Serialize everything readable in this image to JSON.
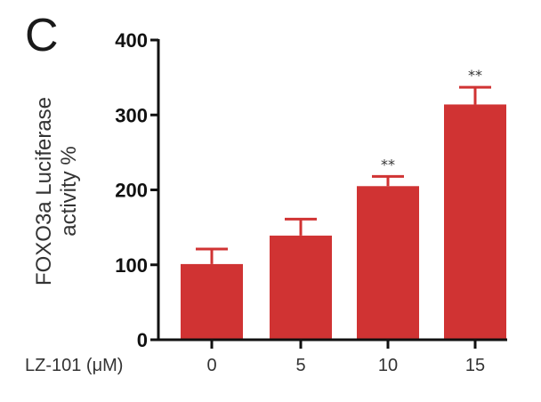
{
  "panel_label": "C",
  "chart_data": {
    "type": "bar",
    "title": "",
    "xlabel": "LZ-101 (μM)",
    "ylabel": "FOXO3a Luciferase activity %",
    "ylabel_lines": [
      "FOXO3a Luciferase",
      "activity %"
    ],
    "categories": [
      "0",
      "5",
      "10",
      "15"
    ],
    "values": [
      101,
      139,
      205,
      314
    ],
    "error_upper": [
      121,
      161,
      218,
      337
    ],
    "significance": [
      "",
      "",
      "**",
      "**"
    ],
    "ylim": [
      0,
      400
    ],
    "yticks": [
      "0",
      "100",
      "200",
      "300",
      "400"
    ],
    "bar_color": "#d03333",
    "grid": false,
    "legend": null
  }
}
